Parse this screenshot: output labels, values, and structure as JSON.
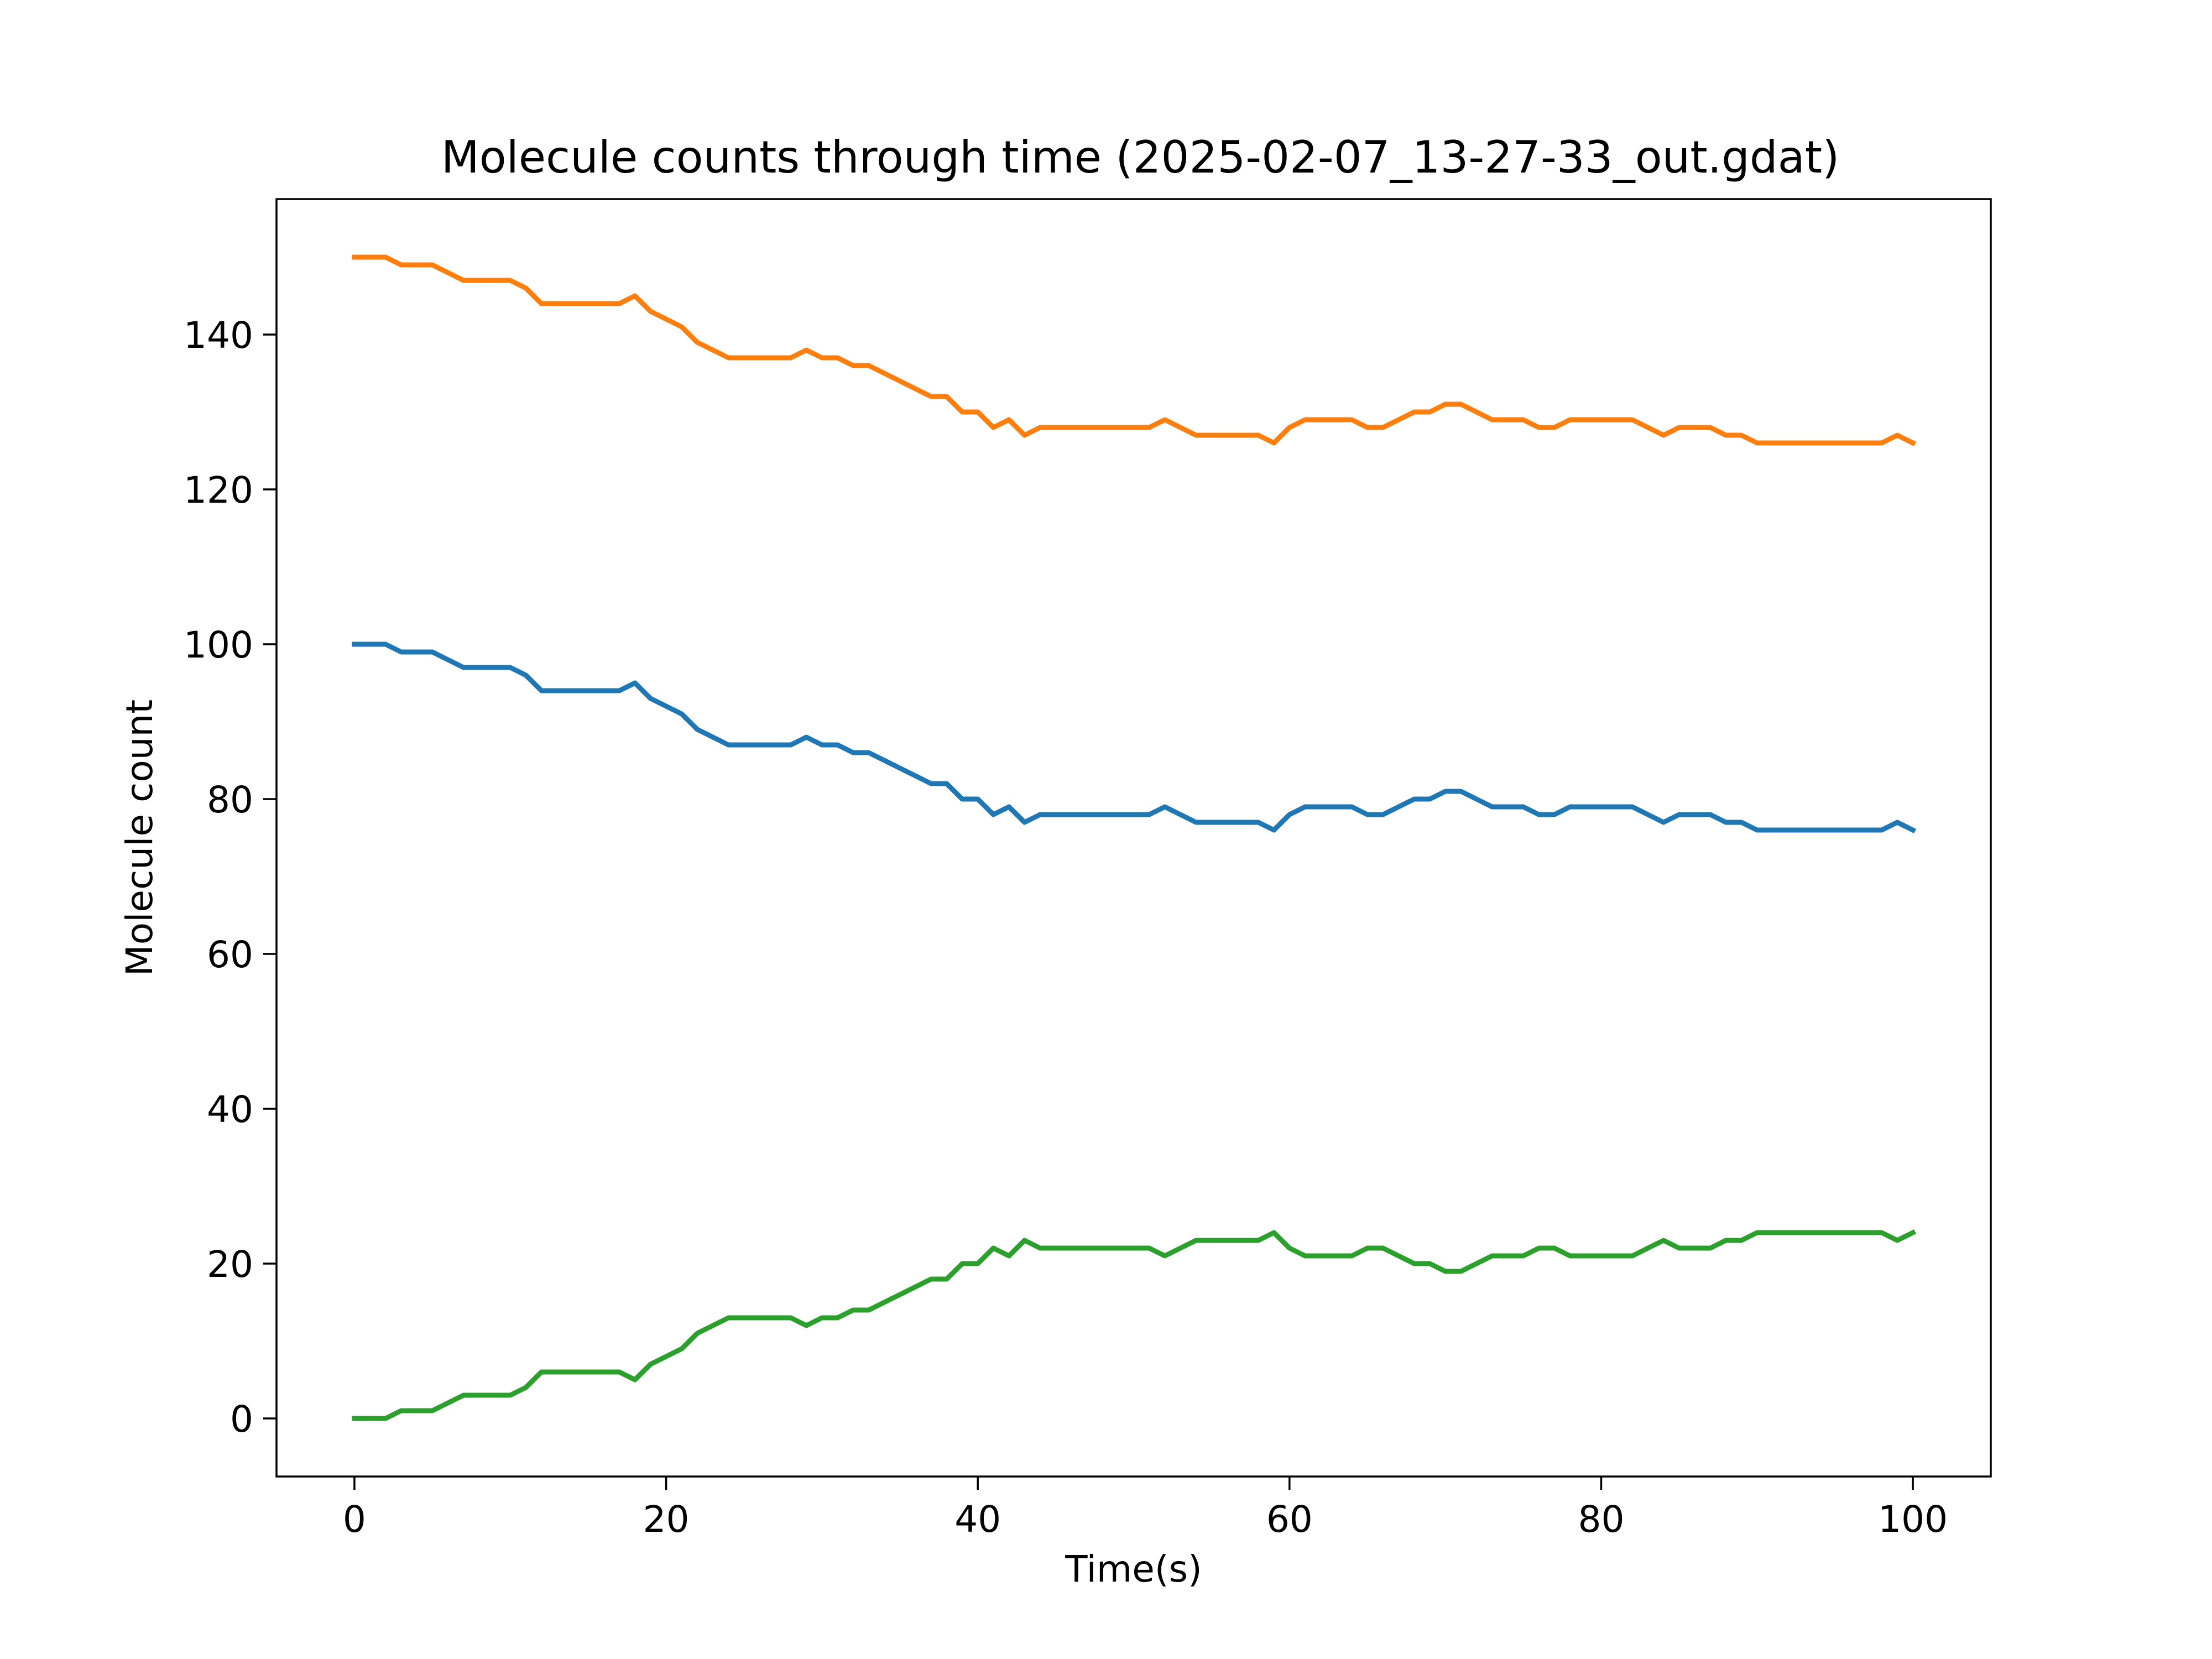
{
  "chart_data": {
    "type": "line",
    "title": "Molecule counts through time (2025-02-07_13-27-33_out.gdat)",
    "xlabel": "Time(s)",
    "ylabel": "Molecule count",
    "xlim": [
      -5,
      105
    ],
    "ylim": [
      -7.5,
      157.5
    ],
    "xticks": [
      0,
      20,
      40,
      60,
      80,
      100
    ],
    "yticks": [
      0,
      20,
      40,
      60,
      80,
      100,
      120,
      140
    ],
    "grid": false,
    "x": [
      0,
      1,
      2,
      3,
      4,
      5,
      6,
      7,
      8,
      9,
      10,
      11,
      12,
      13,
      14,
      15,
      16,
      17,
      18,
      19,
      20,
      21,
      22,
      23,
      24,
      25,
      26,
      27,
      28,
      29,
      30,
      31,
      32,
      33,
      34,
      35,
      36,
      37,
      38,
      39,
      40,
      41,
      42,
      43,
      44,
      45,
      46,
      47,
      48,
      49,
      50,
      51,
      52,
      53,
      54,
      55,
      56,
      57,
      58,
      59,
      60,
      61,
      62,
      63,
      64,
      65,
      66,
      67,
      68,
      69,
      70,
      71,
      72,
      73,
      74,
      75,
      76,
      77,
      78,
      79,
      80,
      81,
      82,
      83,
      84,
      85,
      86,
      87,
      88,
      89,
      90,
      91,
      92,
      93,
      94,
      95,
      96,
      97,
      98,
      99,
      100
    ],
    "series": [
      {
        "color": "#1f77b4",
        "values": [
          100,
          100,
          100,
          99,
          99,
          99,
          98,
          97,
          97,
          97,
          97,
          96,
          94,
          94,
          94,
          94,
          94,
          94,
          95,
          93,
          92,
          91,
          89,
          88,
          87,
          87,
          87,
          87,
          87,
          88,
          87,
          87,
          86,
          86,
          85,
          84,
          83,
          82,
          82,
          80,
          80,
          78,
          79,
          77,
          78,
          78,
          78,
          78,
          78,
          78,
          78,
          78,
          79,
          78,
          77,
          77,
          77,
          77,
          77,
          76,
          78,
          79,
          79,
          79,
          79,
          78,
          78,
          79,
          80,
          80,
          81,
          81,
          80,
          79,
          79,
          79,
          78,
          78,
          79,
          79,
          79,
          79,
          79,
          78,
          77,
          78,
          78,
          78,
          77,
          77,
          76,
          76,
          76,
          76,
          76,
          76,
          76,
          76,
          76,
          77,
          76
        ]
      },
      {
        "color": "#ff7f0e",
        "values": [
          150,
          150,
          150,
          149,
          149,
          149,
          148,
          147,
          147,
          147,
          147,
          146,
          144,
          144,
          144,
          144,
          144,
          144,
          145,
          143,
          142,
          141,
          139,
          138,
          137,
          137,
          137,
          137,
          137,
          138,
          137,
          137,
          136,
          136,
          135,
          134,
          133,
          132,
          132,
          130,
          130,
          128,
          129,
          127,
          128,
          128,
          128,
          128,
          128,
          128,
          128,
          128,
          129,
          128,
          127,
          127,
          127,
          127,
          127,
          126,
          128,
          129,
          129,
          129,
          129,
          128,
          128,
          129,
          130,
          130,
          131,
          131,
          130,
          129,
          129,
          129,
          128,
          128,
          129,
          129,
          129,
          129,
          129,
          128,
          127,
          128,
          128,
          128,
          127,
          127,
          126,
          126,
          126,
          126,
          126,
          126,
          126,
          126,
          126,
          127,
          126
        ]
      },
      {
        "color": "#2ca02c",
        "values": [
          0,
          0,
          0,
          1,
          1,
          1,
          2,
          3,
          3,
          3,
          3,
          4,
          6,
          6,
          6,
          6,
          6,
          6,
          5,
          7,
          8,
          9,
          11,
          12,
          13,
          13,
          13,
          13,
          13,
          12,
          13,
          13,
          14,
          14,
          15,
          16,
          17,
          18,
          18,
          20,
          20,
          22,
          21,
          23,
          22,
          22,
          22,
          22,
          22,
          22,
          22,
          22,
          21,
          22,
          23,
          23,
          23,
          23,
          23,
          24,
          22,
          21,
          21,
          21,
          21,
          22,
          22,
          21,
          20,
          20,
          19,
          19,
          20,
          21,
          21,
          21,
          22,
          22,
          21,
          21,
          21,
          21,
          21,
          22,
          23,
          22,
          22,
          22,
          23,
          23,
          24,
          24,
          24,
          24,
          24,
          24,
          24,
          24,
          24,
          23,
          24
        ]
      }
    ]
  }
}
